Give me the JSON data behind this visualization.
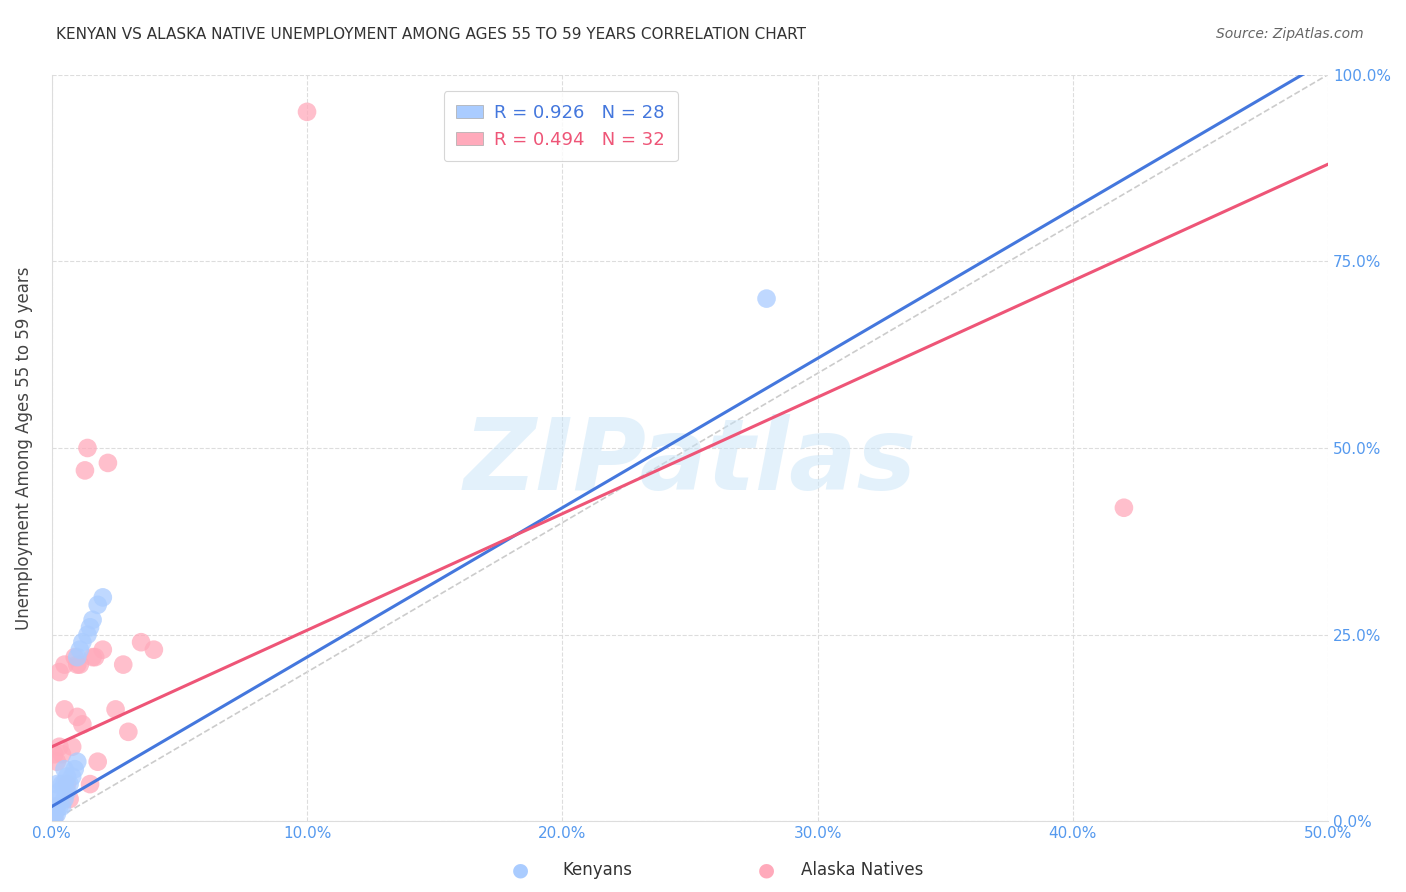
{
  "title": "KENYAN VS ALASKA NATIVE UNEMPLOYMENT AMONG AGES 55 TO 59 YEARS CORRELATION CHART",
  "source": "Source: ZipAtlas.com",
  "ylabel": "Unemployment Among Ages 55 to 59 years",
  "xlim": [
    0.0,
    0.5
  ],
  "ylim": [
    0.0,
    1.0
  ],
  "xticks": [
    0.0,
    0.1,
    0.2,
    0.3,
    0.4,
    0.5
  ],
  "yticks": [
    0.0,
    0.25,
    0.5,
    0.75,
    1.0
  ],
  "xticklabels": [
    "0.0%",
    "10.0%",
    "20.0%",
    "30.0%",
    "40.0%",
    "50.0%"
  ],
  "yticklabels": [
    "0.0%",
    "25.0%",
    "50.0%",
    "75.0%",
    "100.0%"
  ],
  "background_color": "#ffffff",
  "grid_color": "#dddddd",
  "kenyan_color": "#aaccff",
  "alaska_color": "#ffaabb",
  "kenyan_R": 0.926,
  "kenyan_N": 28,
  "alaska_R": 0.494,
  "alaska_N": 32,
  "kenyan_line_color": "#4477dd",
  "alaska_line_color": "#ee5577",
  "ref_line_color": "#cccccc",
  "watermark": "ZIPatlas",
  "kenyan_x": [
    0.001,
    0.001,
    0.001,
    0.002,
    0.002,
    0.002,
    0.003,
    0.003,
    0.004,
    0.004,
    0.005,
    0.005,
    0.005,
    0.006,
    0.006,
    0.007,
    0.008,
    0.009,
    0.01,
    0.01,
    0.011,
    0.012,
    0.014,
    0.015,
    0.016,
    0.018,
    0.02,
    0.28
  ],
  "kenyan_y": [
    0.005,
    0.01,
    0.02,
    0.01,
    0.03,
    0.05,
    0.02,
    0.04,
    0.02,
    0.05,
    0.03,
    0.05,
    0.07,
    0.04,
    0.06,
    0.05,
    0.06,
    0.07,
    0.22,
    0.08,
    0.23,
    0.24,
    0.25,
    0.26,
    0.27,
    0.29,
    0.3,
    0.7
  ],
  "alaska_x": [
    0.001,
    0.001,
    0.002,
    0.002,
    0.003,
    0.003,
    0.004,
    0.005,
    0.005,
    0.006,
    0.007,
    0.008,
    0.009,
    0.01,
    0.01,
    0.011,
    0.012,
    0.013,
    0.014,
    0.015,
    0.016,
    0.017,
    0.018,
    0.02,
    0.022,
    0.025,
    0.028,
    0.03,
    0.035,
    0.04,
    0.42,
    0.1
  ],
  "alaska_y": [
    0.005,
    0.09,
    0.02,
    0.08,
    0.1,
    0.2,
    0.09,
    0.15,
    0.21,
    0.05,
    0.03,
    0.1,
    0.22,
    0.21,
    0.14,
    0.21,
    0.13,
    0.47,
    0.5,
    0.05,
    0.22,
    0.22,
    0.08,
    0.23,
    0.48,
    0.15,
    0.21,
    0.12,
    0.24,
    0.23,
    0.42,
    0.95
  ],
  "kenyan_line_x": [
    0.0,
    0.5
  ],
  "kenyan_line_y": [
    0.02,
    1.02
  ],
  "alaska_line_x": [
    0.0,
    0.5
  ],
  "alaska_line_y": [
    0.1,
    0.88
  ]
}
